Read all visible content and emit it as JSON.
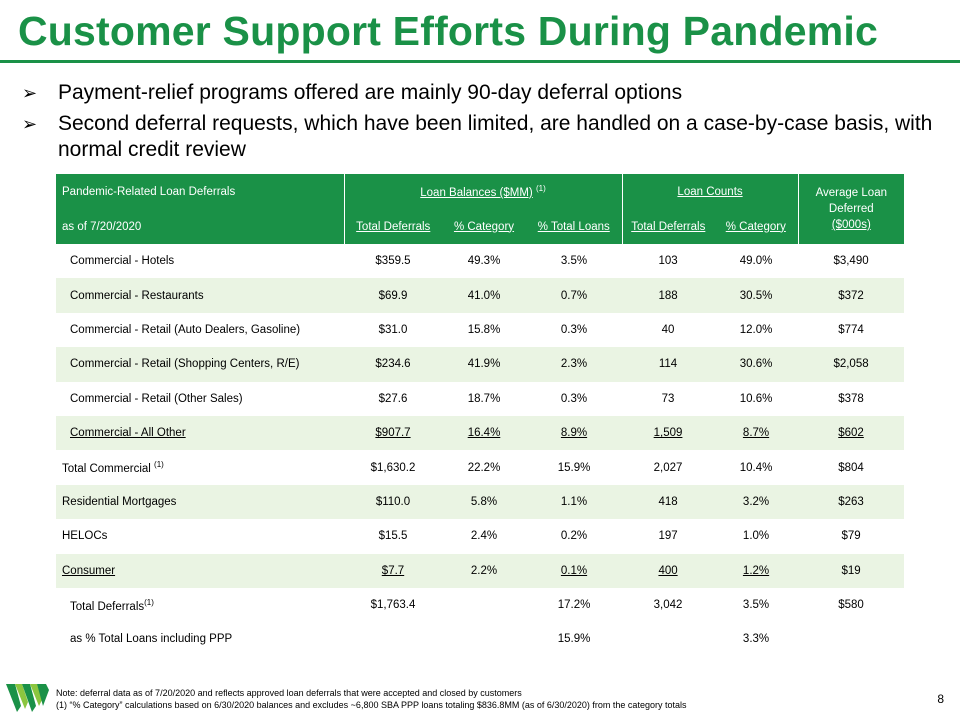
{
  "title": "Customer Support Efforts During Pandemic",
  "bullets": [
    "Payment-relief programs offered are mainly 90-day deferral options",
    "Second deferral requests, which have been limited, are handled on a case-by-case basis, with normal credit review"
  ],
  "table": {
    "header": {
      "row1_label": "Pandemic-Related Loan Deferrals",
      "row2_label": "as of 7/20/2020",
      "group_balances": "Loan Balances ($MM)",
      "group_balances_note": "(1)",
      "group_counts": "Loan Counts",
      "avg_line1": "Average Loan",
      "avg_line2": "Deferred",
      "avg_line3": "($000s)",
      "col_total_deferrals": "Total Deferrals",
      "col_pct_category": "% Category",
      "col_pct_total_loans": "% Total Loans",
      "col_count_total_deferrals": "Total Deferrals",
      "col_count_pct_category": "% Category"
    },
    "rows": [
      {
        "category": "Commercial - Hotels",
        "note": "",
        "balance": "$359.5",
        "pct_cat": "49.3%",
        "pct_total": "3.5%",
        "count": "103",
        "count_pct": "49.0%",
        "avg": "$3,490"
      },
      {
        "category": "Commercial - Restaurants",
        "note": "",
        "balance": "$69.9",
        "pct_cat": "41.0%",
        "pct_total": "0.7%",
        "count": "188",
        "count_pct": "30.5%",
        "avg": "$372"
      },
      {
        "category": "Commercial - Retail (Auto Dealers, Gasoline)",
        "note": "",
        "balance": "$31.0",
        "pct_cat": "15.8%",
        "pct_total": "0.3%",
        "count": "40",
        "count_pct": "12.0%",
        "avg": "$774"
      },
      {
        "category": "Commercial - Retail (Shopping Centers, R/E)",
        "note": "",
        "balance": "$234.6",
        "pct_cat": "41.9%",
        "pct_total": "2.3%",
        "count": "114",
        "count_pct": "30.6%",
        "avg": "$2,058"
      },
      {
        "category": "Commercial - Retail (Other Sales)",
        "note": "",
        "balance": "$27.6",
        "pct_cat": "18.7%",
        "pct_total": "0.3%",
        "count": "73",
        "count_pct": "10.6%",
        "avg": "$378"
      },
      {
        "category": "Commercial - All Other",
        "note": "",
        "balance": "$907.7",
        "pct_cat": "16.4%",
        "pct_total": "8.9%",
        "count": "1,509",
        "count_pct": "8.7%",
        "avg": "$602"
      },
      {
        "category": "Total Commercial",
        "note": "(1)",
        "balance": "$1,630.2",
        "pct_cat": "22.2%",
        "pct_total": "15.9%",
        "count": "2,027",
        "count_pct": "10.4%",
        "avg": "$804"
      },
      {
        "category": "Residential Mortgages",
        "note": "",
        "balance": "$110.0",
        "pct_cat": "5.8%",
        "pct_total": "1.1%",
        "count": "418",
        "count_pct": "3.2%",
        "avg": "$263"
      },
      {
        "category": "HELOCs",
        "note": "",
        "balance": "$15.5",
        "pct_cat": "2.4%",
        "pct_total": "0.2%",
        "count": "197",
        "count_pct": "1.0%",
        "avg": "$79"
      },
      {
        "category": "Consumer",
        "note": "",
        "balance": "$7.7",
        "pct_cat": "2.2%",
        "pct_total": "0.1%",
        "count": "400",
        "count_pct": "1.2%",
        "avg": "$19"
      },
      {
        "category": "Total Deferrals",
        "note": "(1)",
        "balance": "$1,763.4",
        "pct_cat": "",
        "pct_total": "17.2%",
        "count": "3,042",
        "count_pct": "3.5%",
        "avg": "$580"
      },
      {
        "category": "as % Total Loans including PPP",
        "note": "",
        "balance": "",
        "pct_cat": "",
        "pct_total": "15.9%",
        "count": "",
        "count_pct": "3.3%",
        "avg": ""
      }
    ]
  },
  "footnotes": {
    "note": "Note:  deferral data as of 7/20/2020 and reflects approved loan deferrals that were accepted and closed by customers",
    "fn1": "(1)   “% Category” calculations based on 6/30/2020 balances and excludes ~6,800 SBA PPP  loans totaling $836.8MM  (as of 6/30/2020) from the category totals"
  },
  "page_number": "8",
  "colors": {
    "brand_green": "#1a9147",
    "row_shade": "#eaf4e3"
  },
  "logo_icon": "company-logo-icon"
}
